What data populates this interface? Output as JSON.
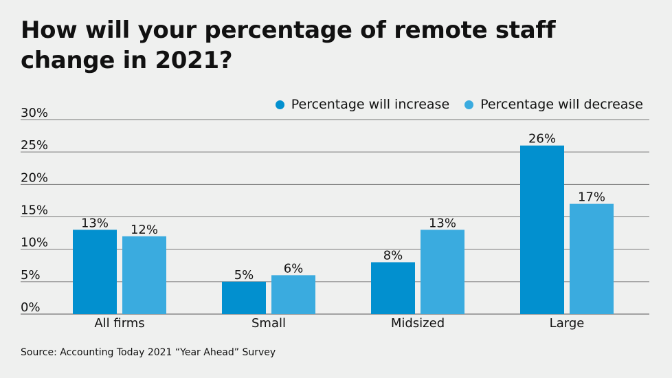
{
  "title": "How will your percentage of remote staff change in 2021?",
  "source": "Source: Accounting Today 2021 “Year Ahead” Survey",
  "chart_data": {
    "type": "bar",
    "categories": [
      "All firms",
      "Small",
      "Midsized",
      "Large"
    ],
    "series": [
      {
        "name": "Percentage will increase",
        "values": [
          13,
          5,
          8,
          26
        ],
        "color": "#0290cf"
      },
      {
        "name": "Percentage will decrease",
        "values": [
          12,
          6,
          13,
          17
        ],
        "color": "#3aabdf"
      }
    ],
    "ylim": [
      0,
      30
    ],
    "yticks": [
      "0%",
      "5%",
      "10%",
      "15%",
      "20%",
      "25%",
      "30%"
    ],
    "value_suffix": "%",
    "grid": true,
    "legend": "top-right"
  }
}
